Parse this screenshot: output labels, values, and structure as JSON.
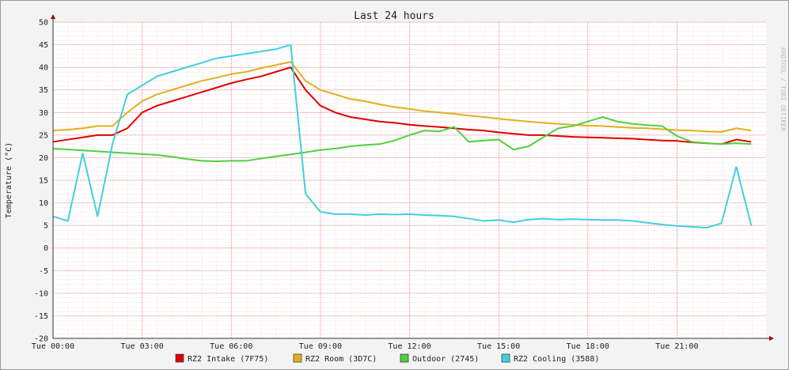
{
  "chart_data": {
    "type": "line",
    "title": "Last 24 hours",
    "y_label": "Temperature (°C)",
    "watermark": "RRDTOOL / TOBI OETIKER",
    "x": [
      0,
      0.5,
      1,
      1.5,
      2,
      2.5,
      3,
      3.5,
      4,
      4.5,
      5,
      5.5,
      6,
      6.5,
      7,
      7.5,
      8,
      8.5,
      9,
      9.5,
      10,
      10.5,
      11,
      11.5,
      12,
      12.5,
      13,
      13.5,
      14,
      14.5,
      15,
      15.5,
      16,
      16.5,
      17,
      17.5,
      18,
      18.5,
      19,
      19.5,
      20,
      20.5,
      21,
      21.5,
      22,
      22.5,
      23,
      23.5
    ],
    "xlim": [
      0,
      24
    ],
    "xticks": [
      {
        "value": 0,
        "label": "Tue 00:00"
      },
      {
        "value": 3,
        "label": "Tue 03:00"
      },
      {
        "value": 6,
        "label": "Tue 06:00"
      },
      {
        "value": 9,
        "label": "Tue 09:00"
      },
      {
        "value": 12,
        "label": "Tue 12:00"
      },
      {
        "value": 15,
        "label": "Tue 15:00"
      },
      {
        "value": 18,
        "label": "Tue 18:00"
      },
      {
        "value": 21,
        "label": "Tue 21:00"
      }
    ],
    "ylim": [
      -20,
      50
    ],
    "yticks": [
      -20,
      -15,
      -10,
      -5,
      0,
      5,
      10,
      15,
      20,
      25,
      30,
      35,
      40,
      45,
      50
    ],
    "grid": true,
    "series": [
      {
        "name": "RZ2 Intake (7F75)",
        "color": "#e00000",
        "values": [
          23.5,
          24,
          24.5,
          25,
          25,
          26.5,
          30,
          31.5,
          32.5,
          33.5,
          34.5,
          35.5,
          36.5,
          37.3,
          38,
          39,
          40,
          35,
          31.5,
          30,
          29,
          28.5,
          28,
          27.7,
          27.3,
          27,
          26.8,
          26.5,
          26.2,
          26,
          25.6,
          25.3,
          25,
          25,
          24.8,
          24.6,
          24.5,
          24.4,
          24.3,
          24.2,
          24,
          23.8,
          23.7,
          23.4,
          23.2,
          23,
          24,
          23.5
        ]
      },
      {
        "name": "RZ2 Room (3D7C)",
        "color": "#e0b020",
        "values": [
          26,
          26.2,
          26.5,
          27,
          27,
          30,
          32.5,
          34,
          35,
          36,
          37,
          37.7,
          38.5,
          39,
          39.8,
          40.5,
          41.2,
          37,
          35,
          34,
          33,
          32.5,
          31.8,
          31.2,
          30.8,
          30.3,
          30,
          29.7,
          29.3,
          29,
          28.6,
          28.3,
          28,
          27.7,
          27.5,
          27.3,
          27.1,
          27,
          26.8,
          26.6,
          26.5,
          26.3,
          26.1,
          26,
          25.8,
          25.7,
          26.5,
          26
        ]
      },
      {
        "name": "Outdoor (2745)",
        "color": "#50d040",
        "values": [
          22,
          21.8,
          21.6,
          21.4,
          21.2,
          21,
          20.8,
          20.6,
          20.2,
          19.7,
          19.3,
          19.2,
          19.3,
          19.3,
          19.8,
          20.3,
          20.7,
          21.2,
          21.7,
          22,
          22.5,
          22.8,
          23,
          23.8,
          25,
          26,
          25.8,
          26.8,
          23.5,
          23.8,
          24,
          21.8,
          22.5,
          24.5,
          26.5,
          27,
          28,
          29,
          28,
          27.5,
          27.2,
          27,
          24.8,
          23.5,
          23.2,
          23,
          23.2,
          23
        ]
      },
      {
        "name": "RZ2 Cooling (3588)",
        "color": "#40d0e0",
        "values": [
          7,
          6,
          21,
          7,
          23,
          34,
          36,
          38,
          39,
          40,
          41,
          42,
          42.5,
          43,
          43.5,
          44,
          45,
          12,
          8,
          7.5,
          7.5,
          7.3,
          7.5,
          7.4,
          7.5,
          7.3,
          7.2,
          7,
          6.5,
          6,
          6.2,
          5.7,
          6.3,
          6.5,
          6.3,
          6.4,
          6.3,
          6.2,
          6.2,
          6,
          5.6,
          5.2,
          4.9,
          4.7,
          4.5,
          5.5,
          18,
          5
        ]
      }
    ]
  }
}
